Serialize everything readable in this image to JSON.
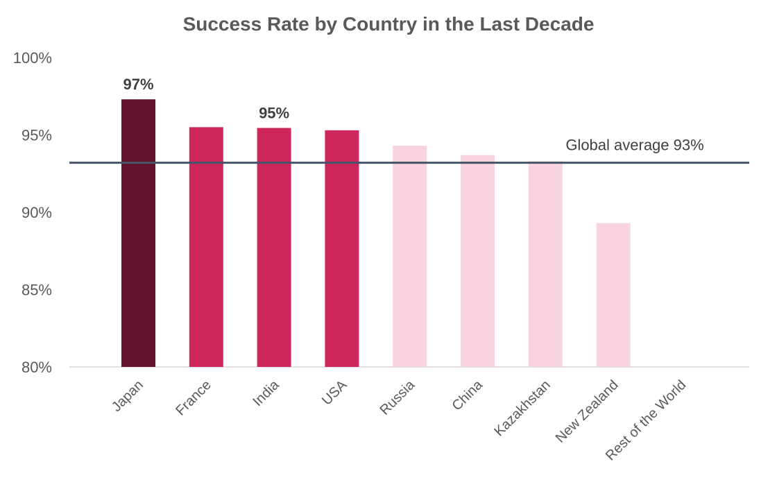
{
  "chart_data": {
    "type": "bar",
    "title": "Success Rate by Country in the Last Decade",
    "xlabel": "",
    "ylabel": "",
    "ylim": [
      80,
      100
    ],
    "yticks": [
      "80%",
      "85%",
      "90%",
      "95%",
      "100%"
    ],
    "ytick_values": [
      80,
      85,
      90,
      95,
      100
    ],
    "categories": [
      "Japan",
      "France",
      "India",
      "USA",
      "Russia",
      "China",
      "Kazakhstan",
      "New Zealand",
      "Rest of the World"
    ],
    "values": [
      97.3,
      95.5,
      95.45,
      95.3,
      94.3,
      93.7,
      93.3,
      89.3,
      80
    ],
    "data_labels": [
      {
        "index": 0,
        "text": "97%"
      },
      {
        "index": 2,
        "text": "95%"
      }
    ],
    "bar_colors": [
      "#65122e",
      "#cd265b",
      "#cd265b",
      "#cd265b",
      "#f7d4e0",
      "#f7d4e0",
      "#f7d4e0",
      "#f7d4e0",
      "#f7d4e0"
    ],
    "reference_line": {
      "value": 93.2,
      "label": "Global average 93%",
      "color": "#44546a"
    },
    "grid": false,
    "legend": "none"
  }
}
